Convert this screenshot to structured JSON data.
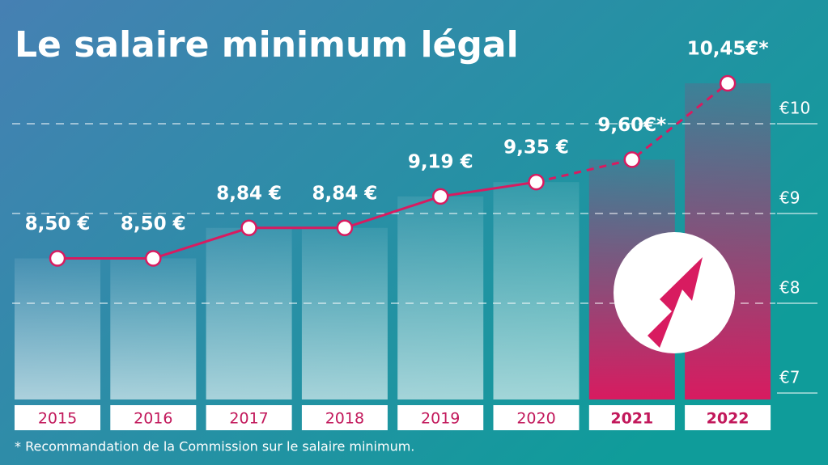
{
  "chart_data": {
    "type": "line",
    "title": "Le salaire minimum légal",
    "categories": [
      "2015",
      "2016",
      "2017",
      "2018",
      "2019",
      "2020",
      "2021",
      "2022"
    ],
    "values": [
      8.5,
      8.5,
      8.84,
      8.84,
      9.19,
      9.35,
      9.6,
      10.45
    ],
    "value_labels": [
      "8,50 €",
      "8,50 €",
      "8,84 €",
      "8,84 €",
      "9,19 €",
      "9,35 €",
      "9,60€*",
      "10,45€*"
    ],
    "color": "#d81b60",
    "ylim": [
      7,
      10.6
    ],
    "yticks": [
      {
        "value": 7,
        "label": "€7"
      },
      {
        "value": 8,
        "label": "€8"
      },
      {
        "value": 9,
        "label": "€9"
      },
      {
        "value": 10,
        "label": "€10"
      }
    ],
    "grid": true,
    "footnote": "* Recommandation de la Commission sur le salaire minimum."
  }
}
